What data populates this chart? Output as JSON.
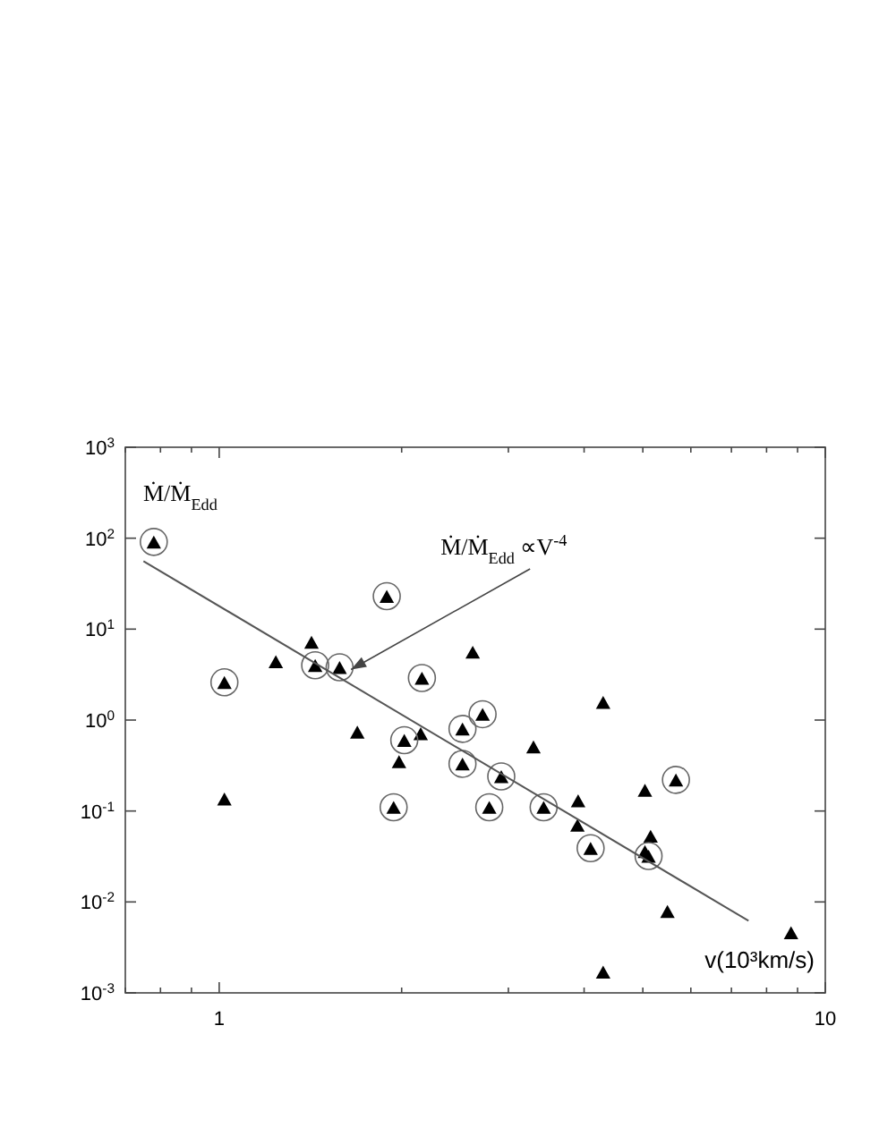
{
  "chart_data": {
    "type": "scatter",
    "xlabel": "v(10³km/s)",
    "ylabel": "Ṁ/Ṁ$_{Edd}$",
    "log": "xy",
    "marker": "triangle",
    "grid": false,
    "xlim": [
      0.7,
      10
    ],
    "ylim": [
      0.001,
      1000
    ],
    "xticks": [
      {
        "value": 0.7,
        "label": null
      },
      {
        "value": 0.8,
        "label": null
      },
      {
        "value": 0.9,
        "label": null
      },
      1,
      {
        "value": 2,
        "label": null
      },
      {
        "value": 3,
        "label": null
      },
      {
        "value": 4,
        "label": null
      },
      {
        "value": 5,
        "label": null
      },
      {
        "value": 6,
        "label": null
      },
      {
        "value": 7,
        "label": null
      },
      {
        "value": 8,
        "label": null
      },
      {
        "value": 9,
        "label": null
      },
      10
    ],
    "yticks": [
      {
        "value": 0.001,
        "label": "10$^{-3}$"
      },
      {
        "value": 0.01,
        "label": "10$^{-2}$"
      },
      {
        "value": 0.1,
        "label": "10$^{-1}$"
      },
      {
        "value": 1,
        "label": "10$^{0}$"
      },
      {
        "value": 10,
        "label": "10$^{1}$"
      },
      {
        "value": 100,
        "label": "10$^{2}$"
      },
      {
        "value": 1000,
        "label": "10$^{3}$"
      }
    ],
    "series": [
      {
        "color": "#000000",
        "x": [
          1.24,
          1.42,
          2.62,
          4.3,
          1.02,
          1.69,
          1.98,
          2.15,
          3.3,
          3.91,
          3.9,
          5.04,
          5.15,
          5.04,
          5.49,
          8.78,
          4.3
        ],
        "values": [
          4.4,
          7.2,
          5.6,
          1.57,
          0.136,
          0.74,
          0.35,
          0.71,
          0.51,
          0.13,
          0.07,
          0.17,
          0.053,
          0.036,
          0.0079,
          0.0046,
          0.0017
        ]
      },
      {
        "color": "#000000",
        "x": [
          0.78,
          1.02,
          1.44,
          1.58,
          1.89,
          2.16,
          2.72,
          2.02,
          1.94,
          2.52,
          2.52,
          2.92,
          2.79,
          3.43,
          4.1,
          5.67,
          5.11
        ],
        "values": [
          91,
          2.6,
          4.0,
          3.8,
          23,
          2.9,
          1.16,
          0.6,
          0.11,
          0.8,
          0.33,
          0.24,
          0.11,
          0.11,
          0.039,
          0.22,
          0.032
        ]
      },
      {
        "color": "#666666",
        "marker": "circle",
        "x": [
          0.78,
          1.02,
          1.44,
          1.58,
          1.89,
          2.16,
          2.72,
          2.02,
          1.94,
          2.52,
          2.52,
          2.92,
          2.79,
          3.43,
          4.1,
          5.67,
          5.11
        ],
        "values": [
          91,
          2.6,
          4.0,
          3.8,
          23,
          2.9,
          1.16,
          0.6,
          0.11,
          0.8,
          0.33,
          0.24,
          0.11,
          0.11,
          0.039,
          0.22,
          0.032
        ]
      },
      {
        "type": "line",
        "marker": "none",
        "color": "#555555",
        "x": [
          0.75,
          7.47
        ],
        "values": [
          56,
          0.0062
        ]
      }
    ],
    "annotations": [
      {
        "text": "Ṁ/Ṁ$_{Edd}$ ∝V$^{-4}$",
        "x": 1.65,
        "y": 3.6
      }
    ]
  }
}
